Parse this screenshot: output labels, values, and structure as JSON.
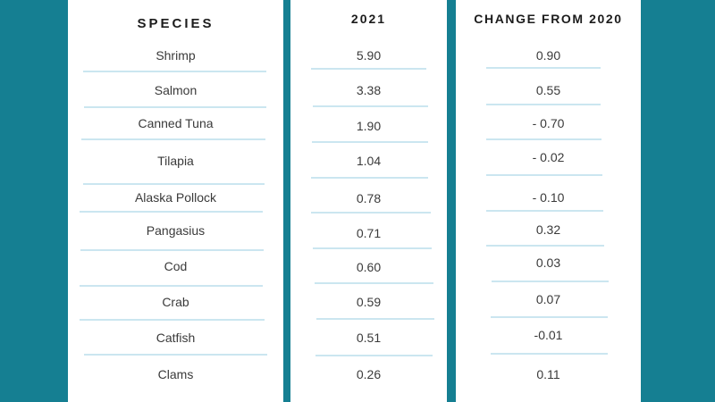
{
  "chart_data": {
    "type": "table",
    "columns": [
      "SPECIES",
      "2021",
      "CHANGE FROM 2020"
    ],
    "rows": [
      [
        "Shrimp",
        "5.90",
        "0.90"
      ],
      [
        "Salmon",
        "3.38",
        "0.55"
      ],
      [
        "Canned Tuna",
        "1.90",
        "- 0.70"
      ],
      [
        "Tilapia",
        "1.04",
        "- 0.02"
      ],
      [
        "Alaska Pollock",
        "0.78",
        "- 0.10"
      ],
      [
        "Pangasius",
        "0.71",
        "0.32"
      ],
      [
        "Cod",
        "0.60",
        "0.03"
      ],
      [
        "Crab",
        "0.59",
        "0.07"
      ],
      [
        "Catfish",
        "0.51",
        "-0.01"
      ],
      [
        "Clams",
        "0.26",
        "0.11"
      ]
    ]
  },
  "colors": {
    "background": "#157f92",
    "panel": "#ffffff",
    "rule": "#cbe6f0",
    "header_text": "#1c1c1c",
    "cell_text": "#3a3a3a"
  }
}
